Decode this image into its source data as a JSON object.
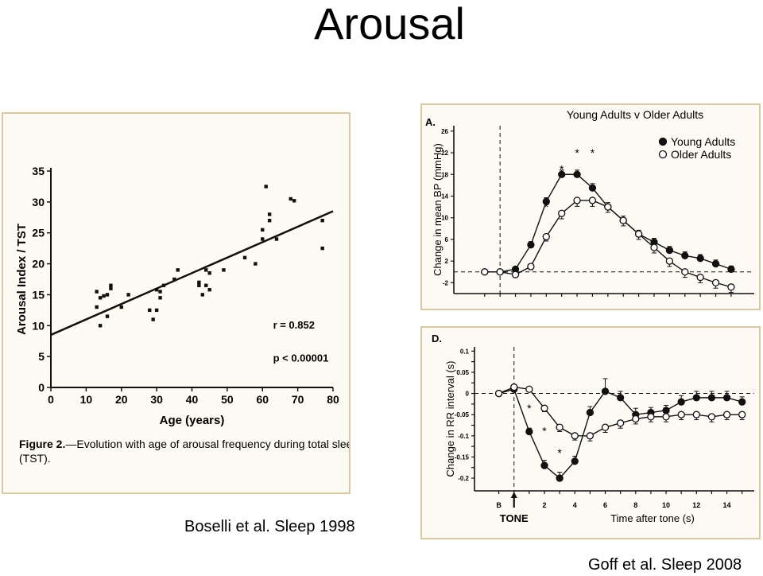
{
  "slide": {
    "title": "Arousal",
    "citation_left": "Boselli et al. Sleep 1998",
    "citation_right": "Goff et al. Sleep 2008"
  },
  "chart_data": [
    {
      "type": "scatter",
      "title": "",
      "xlabel": "Age (years)",
      "ylabel": "Arousal Index / TST",
      "xlim": [
        0,
        80
      ],
      "ylim": [
        0,
        35
      ],
      "x_ticks": [
        "0",
        "10",
        "20",
        "30",
        "40",
        "50",
        "60",
        "70",
        "80"
      ],
      "y_ticks": [
        "0",
        "5",
        "10",
        "15",
        "20",
        "25",
        "30",
        "35"
      ],
      "annotations": [
        "r = 0.852",
        "p < 0.00001"
      ],
      "caption_bold": "Figure 2.",
      "caption_text": "—Evolution with age of arousal frequency during total sleep time (TST).",
      "trendline": {
        "x": [
          0,
          80
        ],
        "y": [
          8.5,
          28.5
        ]
      },
      "points": [
        {
          "x": 13,
          "y": 15.5
        },
        {
          "x": 13,
          "y": 13
        },
        {
          "x": 14,
          "y": 10
        },
        {
          "x": 14,
          "y": 14.5
        },
        {
          "x": 15,
          "y": 14.8
        },
        {
          "x": 16,
          "y": 11.5
        },
        {
          "x": 16,
          "y": 15
        },
        {
          "x": 17,
          "y": 16
        },
        {
          "x": 17,
          "y": 16.5
        },
        {
          "x": 20,
          "y": 13
        },
        {
          "x": 22,
          "y": 15
        },
        {
          "x": 28,
          "y": 12.5
        },
        {
          "x": 29,
          "y": 11
        },
        {
          "x": 30,
          "y": 12.5
        },
        {
          "x": 30,
          "y": 15.8
        },
        {
          "x": 31,
          "y": 15.5
        },
        {
          "x": 31,
          "y": 14.5
        },
        {
          "x": 32,
          "y": 16.5
        },
        {
          "x": 35,
          "y": 17.5
        },
        {
          "x": 36,
          "y": 19
        },
        {
          "x": 42,
          "y": 17
        },
        {
          "x": 42,
          "y": 16.5
        },
        {
          "x": 43,
          "y": 15
        },
        {
          "x": 44,
          "y": 19
        },
        {
          "x": 44,
          "y": 16.5
        },
        {
          "x": 45,
          "y": 15.8
        },
        {
          "x": 45,
          "y": 18.5
        },
        {
          "x": 49,
          "y": 19
        },
        {
          "x": 55,
          "y": 21
        },
        {
          "x": 58,
          "y": 20
        },
        {
          "x": 60,
          "y": 24
        },
        {
          "x": 60,
          "y": 25.5
        },
        {
          "x": 61,
          "y": 32.5
        },
        {
          "x": 62,
          "y": 28
        },
        {
          "x": 62,
          "y": 27
        },
        {
          "x": 64,
          "y": 24
        },
        {
          "x": 68,
          "y": 30.5
        },
        {
          "x": 69,
          "y": 30.2
        },
        {
          "x": 77,
          "y": 27
        },
        {
          "x": 77,
          "y": 22.5
        }
      ]
    },
    {
      "type": "line",
      "panel_label": "A.",
      "title": "Young Adults v Older Adults",
      "xlabel": "",
      "ylabel": "Change in mean BP (mmHg)",
      "ylim": [
        -4,
        27
      ],
      "y_ticks": [
        "-2",
        "2",
        "6",
        "10",
        "14",
        "18",
        "22",
        "26"
      ],
      "tone_marker_x": 1,
      "x": [
        0,
        1,
        2,
        3,
        4,
        5,
        6,
        7,
        8,
        9,
        10,
        11,
        12,
        13,
        14,
        15,
        16
      ],
      "significance_marks": [
        {
          "x": 4,
          "y": 12,
          "label": "*"
        },
        {
          "x": 5,
          "y": 19,
          "label": "*"
        },
        {
          "x": 6,
          "y": 22,
          "label": "*"
        },
        {
          "x": 7,
          "y": 22,
          "label": "*"
        }
      ],
      "series": [
        {
          "name": "Young Adults",
          "marker": "filled",
          "values": [
            0,
            0,
            0.5,
            5,
            13,
            18,
            18,
            15.5,
            12,
            9.5,
            7,
            5.5,
            4,
            3,
            2.5,
            1.5,
            0.5
          ],
          "errors": [
            0,
            0,
            0.3,
            0.6,
            0.7,
            0.8,
            0.8,
            0.8,
            0.8,
            0.8,
            0.7,
            0.7,
            0.7,
            0.7,
            0.7,
            0.7,
            0.6
          ]
        },
        {
          "name": "Older Adults",
          "marker": "open",
          "values": [
            0,
            0,
            -0.5,
            1,
            6.5,
            10.8,
            13.2,
            13.2,
            12,
            9.5,
            7,
            4.5,
            2,
            0,
            -1,
            -2,
            -2.8
          ],
          "errors": [
            0,
            0,
            0.3,
            0.6,
            0.8,
            1.0,
            1.1,
            1.1,
            1.0,
            1.0,
            1.0,
            1.0,
            1.0,
            1.0,
            1.0,
            1.0,
            1.0
          ]
        }
      ]
    },
    {
      "type": "line",
      "panel_label": "D.",
      "title": "",
      "xlabel": "Time after tone (s)",
      "ylabel": "Change in RR interval (s)",
      "ylim": [
        -0.23,
        0.11
      ],
      "y_ticks": [
        "0.1",
        "0.05",
        "0",
        "-0.05",
        "-0.1",
        "-0.15",
        "-0.2"
      ],
      "y_tick_values": [
        0.1,
        0.075,
        0.05,
        0.025,
        0,
        -0.025,
        -0.05,
        -0.075,
        -0.1,
        -0.125,
        -0.15,
        -0.175,
        -0.2
      ],
      "x_ticks": [
        {
          "x": -1,
          "label": "B"
        },
        {
          "x": 2,
          "label": "2"
        },
        {
          "x": 4,
          "label": "4"
        },
        {
          "x": 6,
          "label": "6"
        },
        {
          "x": 8,
          "label": "8"
        },
        {
          "x": 10,
          "label": "10"
        },
        {
          "x": 12,
          "label": "12"
        },
        {
          "x": 14,
          "label": "14"
        }
      ],
      "tone_label": "TONE",
      "tone_x": 0,
      "x": [
        -1,
        0,
        1,
        2,
        3,
        4,
        5,
        6,
        7,
        8,
        9,
        10,
        11,
        12,
        13,
        14,
        15
      ],
      "significance_marks": [
        {
          "x": 1,
          "y": -0.035,
          "label": "*"
        },
        {
          "x": 2,
          "y": -0.088,
          "label": "*"
        },
        {
          "x": 3,
          "y": -0.14,
          "label": "*"
        }
      ],
      "series": [
        {
          "name": "Young Adults",
          "marker": "filled",
          "values": [
            0,
            0.01,
            -0.09,
            -0.17,
            -0.2,
            -0.16,
            -0.045,
            0.005,
            -0.01,
            -0.05,
            -0.045,
            -0.04,
            -0.02,
            -0.01,
            -0.01,
            -0.01,
            -0.02
          ],
          "errors": [
            0,
            0,
            0.008,
            0.012,
            0.014,
            0.012,
            0.014,
            0.03,
            0.015,
            0.015,
            0.012,
            0.012,
            0.015,
            0.015,
            0.015,
            0.015,
            0.012
          ]
        },
        {
          "name": "Older Adults",
          "marker": "open",
          "values": [
            0,
            0.015,
            0.01,
            -0.035,
            -0.08,
            -0.1,
            -0.1,
            -0.08,
            -0.07,
            -0.06,
            -0.055,
            -0.055,
            -0.05,
            -0.05,
            -0.055,
            -0.05,
            -0.05
          ],
          "errors": [
            0,
            0,
            0.005,
            0.008,
            0.01,
            0.01,
            0.012,
            0.012,
            0.012,
            0.012,
            0.012,
            0.012,
            0.012,
            0.012,
            0.012,
            0.012,
            0.012
          ]
        }
      ]
    }
  ]
}
